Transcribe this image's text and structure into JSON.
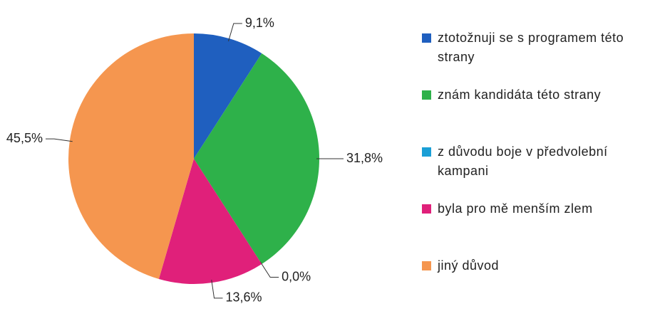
{
  "chart_data": {
    "type": "pie",
    "categories": [
      "ztotožnuji se s programem této strany",
      "znám kandidáta této strany",
      "z důvodu boje v předvolební kampani",
      "byla pro mě menším zlem",
      "jiný důvod"
    ],
    "values": [
      9.1,
      31.8,
      0.0,
      13.6,
      45.5
    ],
    "value_labels": [
      "9,1%",
      "31,8%",
      "0,0%",
      "13,6%",
      "45,5%"
    ],
    "colors": [
      "#1f5fbf",
      "#2eb14a",
      "#1a9fd6",
      "#e0207a",
      "#f5964f"
    ],
    "legend": "right"
  }
}
